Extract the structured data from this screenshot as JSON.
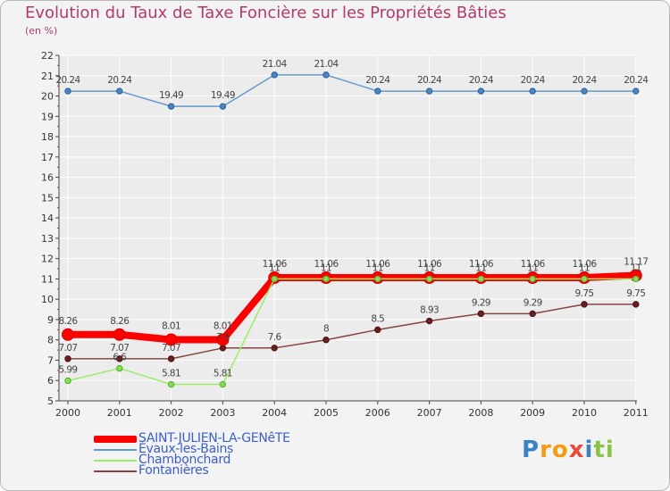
{
  "title": "Evolution du Taux de Taxe Foncière sur les Propriétés Bâties",
  "subtitle": "(en %)",
  "logo": {
    "p": "P",
    "r": "r",
    "o": "o",
    "x": "x",
    "i1": "i",
    "t": "t",
    "i2": "i"
  },
  "colors": {
    "saint": "#ff0000",
    "evaux": "#6699cc",
    "chambon": "#99ee66",
    "fontan": "#884444",
    "axis": "#444444",
    "grid": "#ffffff"
  },
  "chart_data": {
    "type": "line",
    "title": "Evolution du Taux de Taxe Foncière sur les Propriétés Bâties",
    "ylabel": "(en %)",
    "xlabel": "",
    "categories": [
      "2000",
      "2001",
      "2002",
      "2003",
      "2004",
      "2005",
      "2006",
      "2007",
      "2008",
      "2009",
      "2010",
      "2011"
    ],
    "ylim": [
      5,
      22
    ],
    "yticks": [
      "5",
      "6",
      "7",
      "8",
      "9",
      "10",
      "11",
      "12",
      "13",
      "14",
      "15",
      "16",
      "17",
      "18",
      "19",
      "20",
      "21",
      "22"
    ],
    "series": [
      {
        "key": "saint",
        "name": "SAINT-JULIEN-LA-GENêTE",
        "values": [
          8.26,
          8.26,
          8.01,
          8.01,
          11.06,
          11.06,
          11.06,
          11.06,
          11.06,
          11.06,
          11.06,
          11.17
        ],
        "labels": [
          "8.26",
          "8.26",
          "8.01",
          "8.01",
          "11.06",
          "11.06",
          "11.06",
          "11.06",
          "11.06",
          "11.06",
          "11.06",
          "11.17"
        ]
      },
      {
        "key": "evaux",
        "name": "Évaux-les-Bains",
        "values": [
          20.24,
          20.24,
          19.49,
          19.49,
          21.04,
          21.04,
          20.24,
          20.24,
          20.24,
          20.24,
          20.24,
          20.24
        ],
        "labels": [
          "20.24",
          "20.24",
          "19.49",
          "19.49",
          "21.04",
          "21.04",
          "20.24",
          "20.24",
          "20.24",
          "20.24",
          "20.24",
          "20.24"
        ]
      },
      {
        "key": "chambon",
        "name": "Chambonchard",
        "values": [
          5.99,
          6.6,
          5.81,
          5.81,
          11,
          11,
          11,
          11,
          11,
          11,
          11,
          11
        ],
        "labels": [
          "5.99",
          "6.6",
          "5.81",
          "5.81",
          "11",
          "11",
          "11",
          "11",
          "11",
          "11",
          "11",
          "11"
        ]
      },
      {
        "key": "fontan",
        "name": "Fontanières",
        "values": [
          7.07,
          7.07,
          7.07,
          7.6,
          7.6,
          8,
          8.5,
          8.93,
          9.29,
          9.29,
          9.75,
          9.75
        ],
        "labels": [
          "7.07",
          "7.07",
          "7.07",
          "7.6",
          "7.6",
          "8",
          "8.5",
          "8.93",
          "9.29",
          "9.29",
          "9.75",
          "9.75"
        ]
      }
    ],
    "legend_position": "bottom-left"
  }
}
